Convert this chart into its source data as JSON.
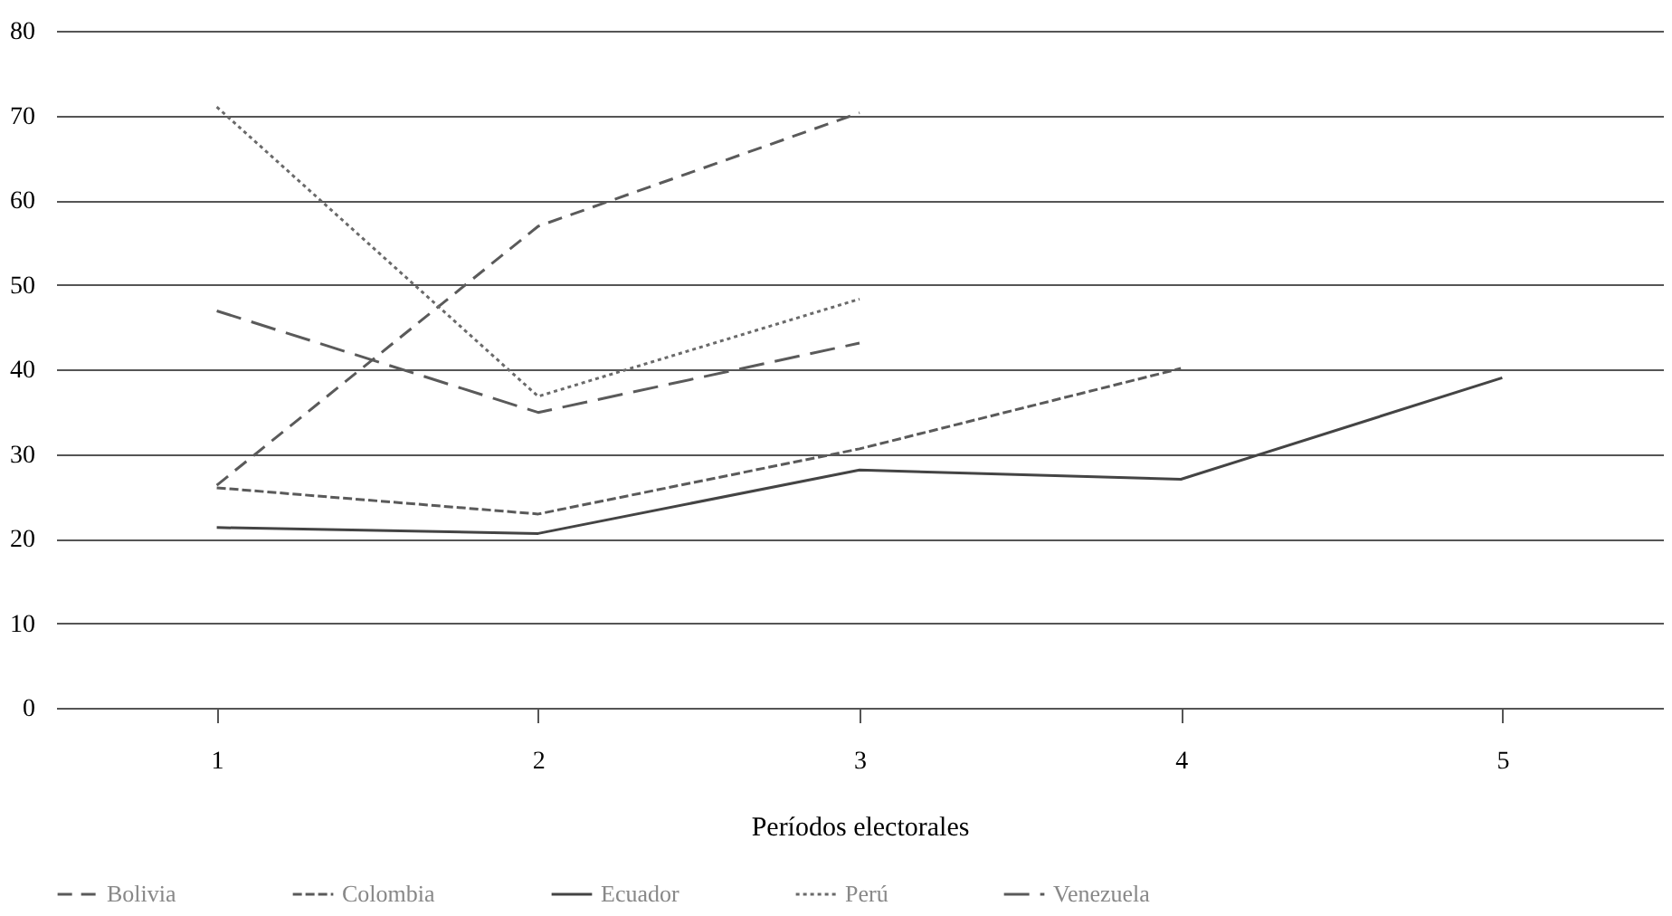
{
  "chart_data": {
    "type": "line",
    "xlabel": "Períodos electorales",
    "categories": [
      "1",
      "2",
      "3",
      "4",
      "5"
    ],
    "ylim": [
      0,
      80
    ],
    "yticks": [
      0,
      10,
      20,
      30,
      40,
      50,
      60,
      70,
      80
    ],
    "grid": "y",
    "legend": "bottom",
    "marker": "none",
    "series": [
      {
        "name": "Bolivia",
        "color": "#5a5a5a",
        "line_style": "dashed",
        "values": [
          26.3,
          56.9,
          70.3,
          null,
          null
        ]
      },
      {
        "name": "Colombia",
        "color": "#5a5a5a",
        "line_style": "dashed",
        "values": [
          26,
          22.9,
          30.6,
          40.1,
          null
        ]
      },
      {
        "name": "Ecuador",
        "color": "#444444",
        "line_style": "solid",
        "values": [
          21.3,
          20.6,
          28.1,
          27,
          39
        ]
      },
      {
        "name": "Perú",
        "color": "#6a6a6a",
        "line_style": "dotted",
        "values": [
          71,
          36.8,
          48.3,
          null,
          null
        ]
      },
      {
        "name": "Venezuela",
        "color": "#5a5a5a",
        "line_style": "dashed",
        "values": [
          46.9,
          34.9,
          43.1,
          null,
          null
        ]
      }
    ]
  }
}
